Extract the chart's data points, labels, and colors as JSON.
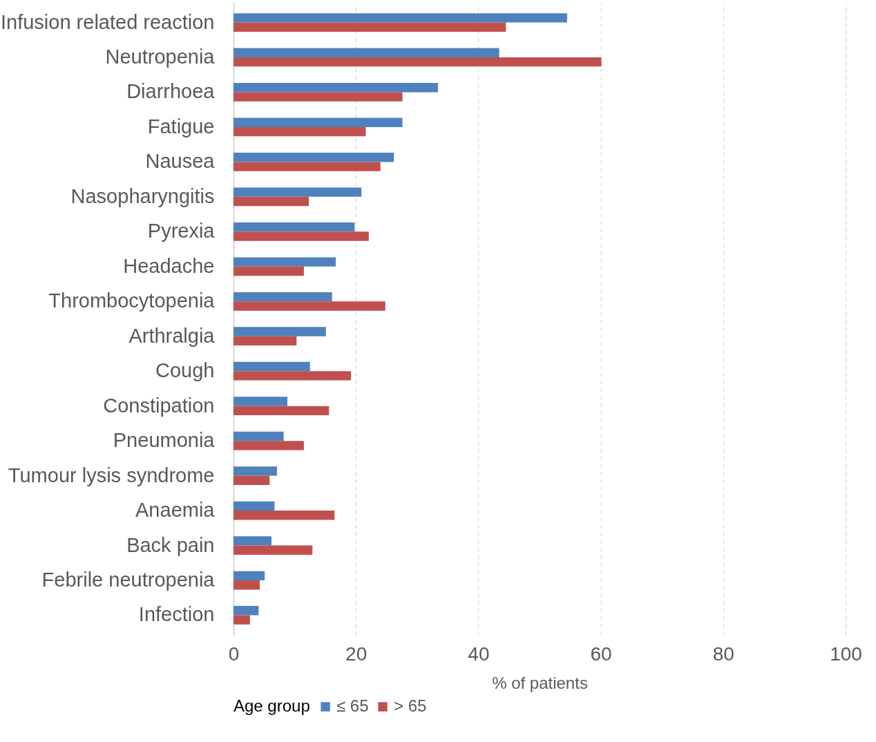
{
  "chart_data": {
    "type": "bar",
    "orientation": "horizontal",
    "xlabel": "% of patients",
    "legend_title": "Age group",
    "legend": "bottom",
    "grid": "x",
    "categories": [
      "Infusion related reaction",
      "Neutropenia",
      "Diarrhoea",
      "Fatigue",
      "Nausea",
      "Nasopharyngitis",
      "Pyrexia",
      "Headache",
      "Thrombocytopenia",
      "Arthralgia",
      "Cough",
      "Constipation",
      "Pneumonia",
      "Tumour lysis syndrome",
      "Anaemia",
      "Back pain",
      "Febrile neutropenia",
      "Infection"
    ],
    "series": [
      {
        "name": "≤ 65",
        "color": "#4f81bd",
        "values": [
          54.5,
          43.4,
          33.4,
          27.6,
          26.2,
          20.9,
          19.8,
          16.7,
          16.1,
          15.1,
          12.5,
          8.8,
          8.2,
          7.1,
          6.7,
          6.2,
          5.1,
          4.1
        ]
      },
      {
        "name": "> 65",
        "color": "#c0504d",
        "values": [
          44.5,
          60.1,
          27.6,
          21.6,
          24.0,
          12.3,
          22.1,
          11.5,
          24.8,
          10.3,
          19.2,
          15.6,
          11.5,
          5.9,
          16.5,
          12.9,
          4.3,
          2.7
        ]
      }
    ],
    "xlim": [
      0,
      100
    ],
    "xticks": [
      0,
      20,
      40,
      60,
      80,
      100
    ]
  }
}
